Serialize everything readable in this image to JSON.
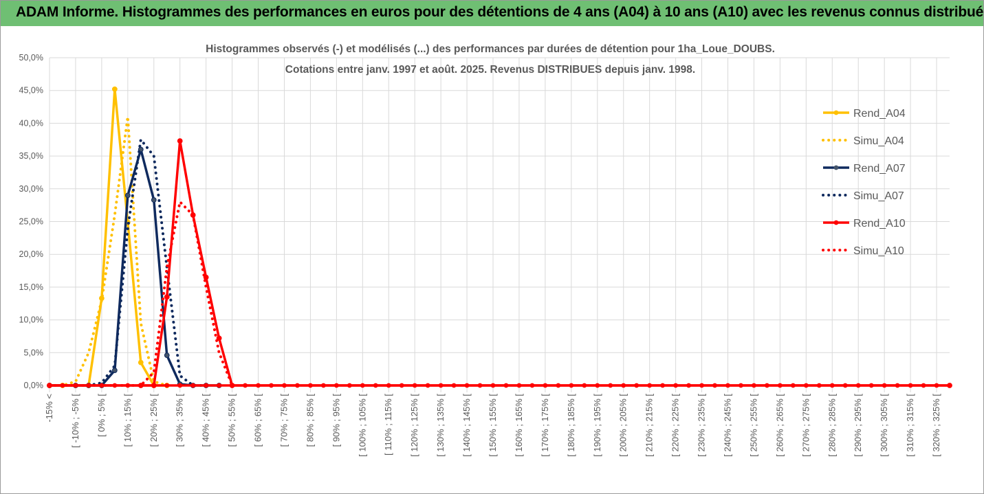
{
  "banner": {
    "title": "ADAM Informe. Histogrammes des performances en euros pour des détentions de 4 ans (A04) à 10 ans (A10) avec les revenus connus distribués",
    "color": "#6fbf73"
  },
  "chart_data": {
    "type": "line",
    "title": "Histogrammes observés (-) et modélisés (...)  des performances par durées de détention pour 1ha_Loue_DOUBS.",
    "subtitle": "Cotations entre janv. 1997 et août. 2025. Revenus DISTRIBUES depuis janv. 1998.",
    "xlabel": "",
    "ylabel": "",
    "ylim": [
      0,
      50
    ],
    "y_tick_step": 5,
    "y_tick_format": "percent_1dec_comma",
    "grid": true,
    "legend_position": "right",
    "categories": [
      "-15% <",
      "[ -10% ; -5% [",
      "[ 0% ; 5% [",
      "[ 10% ; 15% [",
      "[ 20% ; 25% [",
      "[ 30% ; 35% [",
      "[ 40% ; 45% [",
      "[ 50% ; 55% [",
      "[ 60% ; 65% [",
      "[ 70% ; 75% [",
      "[ 80% ; 85% [",
      "[ 90% ; 95% [",
      "[ 100% ; 105% [",
      "[ 110% ; 115% [",
      "[ 120% ; 125% [",
      "[ 130% ; 135% [",
      "[ 140% ; 145% [",
      "[ 150% ; 155% [",
      "[ 160% ; 165% [",
      "[ 170% ; 175% [",
      "[ 180% ; 185% [",
      "[ 190% ; 195% [",
      "[ 200% ; 205% [",
      "[ 210% ; 215% [",
      "[ 220% ; 225% [",
      "[ 230% ; 235% [",
      "[ 240% ; 245% [",
      "[ 250% ; 255% [",
      "[ 260% ; 265% [",
      "[ 270% ; 275% [",
      "[ 280% ; 285% [",
      "[ 290% ; 295% [",
      "[ 300% ; 305% [",
      "[ 310% ; 315% [",
      "[ 320% ; 325% ["
    ],
    "x_bin_start": -15,
    "x_bin_step": 5,
    "x_bin_count": 70,
    "series": [
      {
        "name": "Rend_A04",
        "style": "solid",
        "color": "#ffc000",
        "values": [
          [
            -15,
            0
          ],
          [
            -10,
            0
          ],
          [
            -5,
            0
          ],
          [
            0,
            0
          ],
          [
            5,
            13.3
          ],
          [
            10,
            45.2
          ],
          [
            15,
            24.9
          ],
          [
            20,
            3.5
          ],
          [
            25,
            0
          ],
          [
            30,
            0
          ]
        ]
      },
      {
        "name": "Simu_A04",
        "style": "dotted",
        "color": "#ffc000",
        "values": [
          [
            -15,
            0
          ],
          [
            -10,
            0
          ],
          [
            -5,
            0.6
          ],
          [
            0,
            5
          ],
          [
            5,
            13
          ],
          [
            10,
            26
          ],
          [
            15,
            41
          ],
          [
            20,
            9.5
          ],
          [
            25,
            0.6
          ],
          [
            30,
            0
          ]
        ]
      },
      {
        "name": "Rend_A07",
        "style": "solid",
        "color": "#0f2a5e",
        "values": [
          [
            -15,
            0
          ],
          [
            -5,
            0
          ],
          [
            0,
            0
          ],
          [
            5,
            0
          ],
          [
            10,
            2.3
          ],
          [
            15,
            29
          ],
          [
            20,
            36
          ],
          [
            25,
            28.3
          ],
          [
            30,
            4.6
          ],
          [
            35,
            0.2
          ],
          [
            40,
            0
          ],
          [
            45,
            0
          ],
          [
            50,
            0
          ]
        ]
      },
      {
        "name": "Simu_A07",
        "style": "dotted",
        "color": "#0f2a5e",
        "values": [
          [
            -15,
            0
          ],
          [
            0,
            0
          ],
          [
            5,
            0.4
          ],
          [
            10,
            3
          ],
          [
            15,
            24
          ],
          [
            20,
            37.5
          ],
          [
            25,
            35
          ],
          [
            30,
            18
          ],
          [
            35,
            1.5
          ],
          [
            40,
            0
          ],
          [
            45,
            0
          ]
        ]
      },
      {
        "name": "Rend_A10",
        "style": "solid",
        "color": "#ff0000",
        "values": [
          [
            -15,
            0
          ],
          [
            20,
            0
          ],
          [
            25,
            0
          ],
          [
            30,
            13.5
          ],
          [
            35,
            37.3
          ],
          [
            40,
            26
          ],
          [
            45,
            16.5
          ],
          [
            50,
            7.2
          ],
          [
            55,
            0
          ],
          [
            330,
            0
          ]
        ]
      },
      {
        "name": "Simu_A10",
        "style": "dotted",
        "color": "#ff0000",
        "values": [
          [
            -15,
            0
          ],
          [
            15,
            0
          ],
          [
            20,
            0
          ],
          [
            25,
            2
          ],
          [
            30,
            18
          ],
          [
            35,
            28
          ],
          [
            40,
            26
          ],
          [
            45,
            15
          ],
          [
            50,
            5
          ],
          [
            55,
            0
          ]
        ]
      }
    ]
  }
}
